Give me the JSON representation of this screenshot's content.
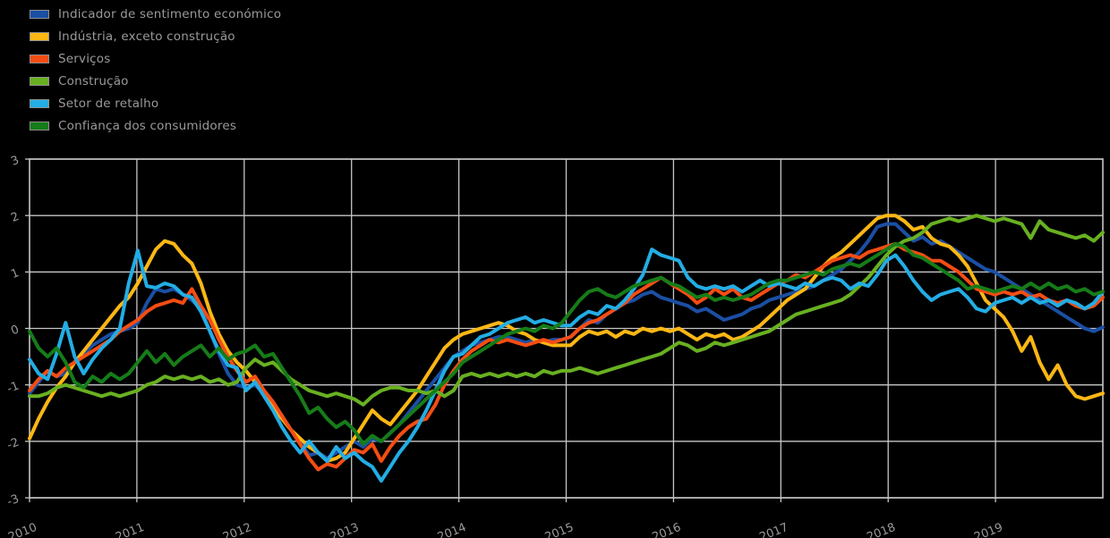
{
  "colors": {
    "background": "#000000",
    "grid": "#c6c6c6",
    "frame": "#c6c6c6",
    "text": "#9a9a9a"
  },
  "legend": {
    "items": [
      {
        "label": "Indicador de sentimento económico",
        "color": "#1b4fa4"
      },
      {
        "label": "Indústria, exceto construção",
        "color": "#fdb714"
      },
      {
        "label": "Serviços",
        "color": "#f44d13"
      },
      {
        "label": "Construção",
        "color": "#68b021"
      },
      {
        "label": "Setor de retalho",
        "color": "#23ade4"
      },
      {
        "label": "Confiança dos consumidores",
        "color": "#167c19"
      }
    ]
  },
  "chart_data": {
    "type": "line",
    "title": "",
    "xlabel": "",
    "ylabel": "",
    "x_start_year": 2010,
    "x_step_months": 1,
    "xlim": [
      2010,
      2020
    ],
    "ylim": [
      -3,
      3
    ],
    "grid": true,
    "legend_position": "top-left",
    "x_tick_labels": [
      "2010",
      "2011",
      "2012",
      "2013",
      "2014",
      "2015",
      "2016",
      "2017",
      "2018",
      "2019"
    ],
    "y_tick_labels": [
      "3",
      "2",
      "1",
      "0",
      "-1",
      "-2",
      "-3"
    ],
    "y_tick_values": [
      3,
      2,
      1,
      0,
      -1,
      -2,
      -3
    ],
    "series": [
      {
        "name": "Indicador de sentimento económico",
        "color": "#1b4fa4",
        "values": [
          -1.15,
          -0.95,
          -0.75,
          -0.85,
          -0.8,
          -0.6,
          -0.45,
          -0.3,
          -0.2,
          -0.1,
          -0.05,
          0,
          0.1,
          0.45,
          0.7,
          0.65,
          0.7,
          0.6,
          0.5,
          0.35,
          -0.05,
          -0.45,
          -0.8,
          -1,
          -1.05,
          -1,
          -1.15,
          -1.35,
          -1.55,
          -1.8,
          -2,
          -2.25,
          -2.2,
          -2.3,
          -2.2,
          -2.1,
          -2,
          -2.1,
          -1.95,
          -2,
          -1.85,
          -1.7,
          -1.5,
          -1.3,
          -1.1,
          -0.9,
          -0.7,
          -0.5,
          -0.4,
          -0.3,
          -0.25,
          -0.2,
          -0.15,
          -0.15,
          -0.2,
          -0.25,
          -0.2,
          -0.25,
          -0.2,
          -0.2,
          -0.15,
          0,
          0.15,
          0.1,
          0.25,
          0.35,
          0.45,
          0.5,
          0.6,
          0.65,
          0.55,
          0.5,
          0.45,
          0.4,
          0.3,
          0.35,
          0.25,
          0.15,
          0.2,
          0.25,
          0.35,
          0.4,
          0.5,
          0.55,
          0.6,
          0.65,
          0.7,
          0.75,
          0.85,
          0.95,
          1.05,
          1.2,
          1.35,
          1.55,
          1.8,
          1.85,
          1.85,
          1.7,
          1.55,
          1.62,
          1.5,
          1.55,
          1.45,
          1.35,
          1.25,
          1.15,
          1.05,
          1,
          0.9,
          0.8,
          0.7,
          0.6,
          0.5,
          0.4,
          0.3,
          0.2,
          0.1,
          0,
          -0.05,
          0.02
        ]
      },
      {
        "name": "Indústria, exceto construção",
        "color": "#fdb714",
        "values": [
          -1.95,
          -1.6,
          -1.3,
          -1.05,
          -0.85,
          -0.6,
          -0.4,
          -0.2,
          0,
          0.2,
          0.4,
          0.55,
          0.8,
          1.1,
          1.4,
          1.55,
          1.5,
          1.3,
          1.15,
          0.8,
          0.3,
          -0.1,
          -0.4,
          -0.6,
          -0.75,
          -0.95,
          -1.15,
          -1.4,
          -1.6,
          -1.8,
          -1.95,
          -2.1,
          -2.2,
          -2.35,
          -2.3,
          -2.2,
          -1.95,
          -1.7,
          -1.45,
          -1.6,
          -1.7,
          -1.5,
          -1.3,
          -1.1,
          -0.85,
          -0.6,
          -0.35,
          -0.2,
          -0.1,
          -0.05,
          0,
          0.05,
          0.1,
          0.05,
          -0.05,
          -0.1,
          -0.2,
          -0.25,
          -0.3,
          -0.3,
          -0.3,
          -0.15,
          -0.05,
          -0.1,
          -0.05,
          -0.15,
          -0.05,
          -0.1,
          0,
          -0.05,
          0,
          -0.05,
          0,
          -0.1,
          -0.2,
          -0.1,
          -0.15,
          -0.1,
          -0.2,
          -0.15,
          -0.05,
          0.05,
          0.2,
          0.35,
          0.5,
          0.6,
          0.7,
          0.9,
          1.1,
          1.25,
          1.35,
          1.5,
          1.65,
          1.8,
          1.95,
          2,
          2,
          1.9,
          1.75,
          1.8,
          1.6,
          1.5,
          1.45,
          1.3,
          1.1,
          0.8,
          0.5,
          0.35,
          0.2,
          -0.05,
          -0.4,
          -0.15,
          -0.6,
          -0.9,
          -0.65,
          -1,
          -1.2,
          -1.25,
          -1.2,
          -1.15
        ]
      },
      {
        "name": "Serviços",
        "color": "#f44d13",
        "values": [
          -1.1,
          -0.9,
          -0.75,
          -0.85,
          -0.7,
          -0.6,
          -0.5,
          -0.4,
          -0.3,
          -0.2,
          -0.05,
          0.05,
          0.15,
          0.3,
          0.4,
          0.45,
          0.5,
          0.45,
          0.7,
          0.4,
          0.15,
          -0.2,
          -0.5,
          -0.75,
          -0.95,
          -0.85,
          -1.1,
          -1.3,
          -1.55,
          -1.8,
          -2.05,
          -2.3,
          -2.5,
          -2.4,
          -2.45,
          -2.3,
          -2.15,
          -2.2,
          -2.05,
          -2.35,
          -2.1,
          -1.9,
          -1.75,
          -1.65,
          -1.6,
          -1.35,
          -1,
          -0.75,
          -0.55,
          -0.4,
          -0.3,
          -0.2,
          -0.25,
          -0.2,
          -0.25,
          -0.3,
          -0.25,
          -0.2,
          -0.25,
          -0.2,
          -0.15,
          0,
          0.1,
          0.15,
          0.25,
          0.35,
          0.45,
          0.6,
          0.7,
          0.8,
          0.9,
          0.8,
          0.7,
          0.6,
          0.45,
          0.55,
          0.7,
          0.6,
          0.7,
          0.55,
          0.5,
          0.6,
          0.7,
          0.8,
          0.85,
          0.95,
          0.9,
          1,
          1.1,
          1.2,
          1.25,
          1.3,
          1.25,
          1.35,
          1.4,
          1.45,
          1.5,
          1.4,
          1.35,
          1.3,
          1.2,
          1.2,
          1.1,
          1,
          0.85,
          0.7,
          0.65,
          0.6,
          0.65,
          0.6,
          0.65,
          0.55,
          0.6,
          0.5,
          0.45,
          0.5,
          0.4,
          0.35,
          0.4,
          0.55
        ]
      },
      {
        "name": "Construção",
        "color": "#68b021",
        "values": [
          -1.2,
          -1.2,
          -1.15,
          -1.05,
          -1,
          -1.05,
          -1.1,
          -1.15,
          -1.2,
          -1.15,
          -1.2,
          -1.15,
          -1.1,
          -1,
          -0.95,
          -0.85,
          -0.9,
          -0.85,
          -0.9,
          -0.85,
          -0.95,
          -0.9,
          -1,
          -0.95,
          -0.7,
          -0.55,
          -0.65,
          -0.6,
          -0.75,
          -0.9,
          -1,
          -1.1,
          -1.15,
          -1.2,
          -1.15,
          -1.2,
          -1.25,
          -1.35,
          -1.2,
          -1.1,
          -1.05,
          -1.05,
          -1.1,
          -1.1,
          -1.15,
          -1.1,
          -1.2,
          -1.1,
          -0.85,
          -0.8,
          -0.85,
          -0.8,
          -0.85,
          -0.8,
          -0.85,
          -0.8,
          -0.85,
          -0.75,
          -0.8,
          -0.75,
          -0.75,
          -0.7,
          -0.75,
          -0.8,
          -0.75,
          -0.7,
          -0.65,
          -0.6,
          -0.55,
          -0.5,
          -0.45,
          -0.35,
          -0.25,
          -0.3,
          -0.4,
          -0.35,
          -0.25,
          -0.3,
          -0.25,
          -0.2,
          -0.15,
          -0.1,
          -0.05,
          0.05,
          0.15,
          0.25,
          0.3,
          0.35,
          0.4,
          0.45,
          0.5,
          0.6,
          0.75,
          0.9,
          1.1,
          1.3,
          1.45,
          1.55,
          1.6,
          1.7,
          1.85,
          1.9,
          1.95,
          1.9,
          1.95,
          2,
          1.95,
          1.9,
          1.95,
          1.9,
          1.85,
          1.6,
          1.9,
          1.75,
          1.7,
          1.65,
          1.6,
          1.65,
          1.55,
          1.7
        ]
      },
      {
        "name": "Setor de retalho",
        "color": "#23ade4",
        "values": [
          -0.55,
          -0.8,
          -0.9,
          -0.45,
          0.1,
          -0.5,
          -0.8,
          -0.55,
          -0.35,
          -0.2,
          0,
          0.8,
          1.38,
          0.75,
          0.72,
          0.8,
          0.75,
          0.6,
          0.55,
          0.3,
          -0.05,
          -0.4,
          -0.65,
          -0.7,
          -1.1,
          -0.95,
          -1.2,
          -1.45,
          -1.75,
          -2,
          -2.2,
          -2,
          -2.2,
          -2.35,
          -2.1,
          -2.3,
          -2.2,
          -2.35,
          -2.45,
          -2.7,
          -2.45,
          -2.2,
          -2,
          -1.75,
          -1.45,
          -1.1,
          -0.75,
          -0.5,
          -0.45,
          -0.3,
          -0.15,
          -0.1,
          0,
          0.1,
          0.15,
          0.2,
          0.1,
          0.15,
          0.1,
          0.05,
          0.05,
          0.2,
          0.3,
          0.25,
          0.4,
          0.35,
          0.5,
          0.7,
          0.95,
          1.4,
          1.3,
          1.25,
          1.2,
          0.9,
          0.75,
          0.7,
          0.75,
          0.7,
          0.75,
          0.65,
          0.75,
          0.85,
          0.75,
          0.8,
          0.75,
          0.7,
          0.8,
          0.75,
          0.85,
          0.9,
          0.85,
          0.7,
          0.8,
          0.75,
          0.95,
          1.2,
          1.3,
          1.1,
          0.85,
          0.65,
          0.5,
          0.6,
          0.65,
          0.7,
          0.55,
          0.35,
          0.3,
          0.45,
          0.5,
          0.55,
          0.45,
          0.55,
          0.45,
          0.5,
          0.4,
          0.5,
          0.45,
          0.35,
          0.45,
          0.65
        ]
      },
      {
        "name": "Confiança dos consumidores",
        "color": "#167c19",
        "values": [
          -0.05,
          -0.35,
          -0.5,
          -0.35,
          -0.6,
          -0.95,
          -1.05,
          -0.85,
          -0.95,
          -0.8,
          -0.9,
          -0.8,
          -0.6,
          -0.4,
          -0.6,
          -0.45,
          -0.65,
          -0.5,
          -0.4,
          -0.3,
          -0.5,
          -0.35,
          -0.55,
          -0.45,
          -0.4,
          -0.3,
          -0.5,
          -0.45,
          -0.7,
          -0.95,
          -1.2,
          -1.5,
          -1.4,
          -1.6,
          -1.75,
          -1.65,
          -1.8,
          -2.05,
          -1.9,
          -2,
          -1.85,
          -1.7,
          -1.55,
          -1.4,
          -1.25,
          -1.1,
          -0.95,
          -0.8,
          -0.6,
          -0.5,
          -0.4,
          -0.3,
          -0.2,
          -0.1,
          -0.05,
          0,
          -0.05,
          0.05,
          0,
          0.1,
          0.3,
          0.5,
          0.65,
          0.7,
          0.6,
          0.55,
          0.65,
          0.75,
          0.8,
          0.85,
          0.9,
          0.8,
          0.75,
          0.65,
          0.55,
          0.6,
          0.5,
          0.55,
          0.5,
          0.55,
          0.6,
          0.7,
          0.8,
          0.85,
          0.85,
          0.9,
          0.95,
          1,
          0.95,
          1.05,
          1.1,
          1.15,
          1.1,
          1.2,
          1.3,
          1.4,
          1.5,
          1.45,
          1.3,
          1.25,
          1.15,
          1.05,
          0.95,
          0.85,
          0.7,
          0.75,
          0.7,
          0.65,
          0.7,
          0.75,
          0.7,
          0.8,
          0.7,
          0.8,
          0.7,
          0.75,
          0.65,
          0.7,
          0.6,
          0.65
        ]
      }
    ]
  }
}
